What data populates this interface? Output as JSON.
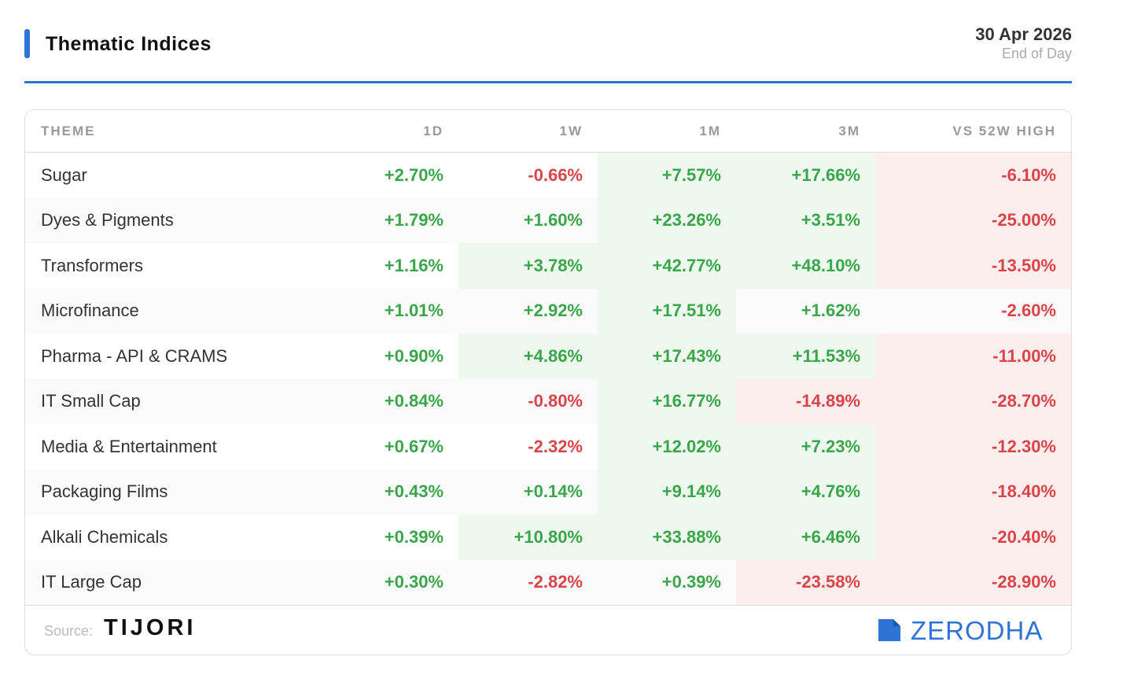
{
  "header": {
    "title": "Thematic Indices",
    "date": "30 Apr 2026",
    "subtitle": "End of Day"
  },
  "table": {
    "columns": [
      "THEME",
      "1D",
      "1W",
      "1M",
      "3M",
      "VS 52W HIGH"
    ],
    "rows": [
      [
        "Sugar",
        "+2.70%",
        "-0.66%",
        "+7.57%",
        "+17.66%",
        "-6.10%"
      ],
      [
        "Dyes & Pigments",
        "+1.79%",
        "+1.60%",
        "+23.26%",
        "+3.51%",
        "-25.00%"
      ],
      [
        "Transformers",
        "+1.16%",
        "+3.78%",
        "+42.77%",
        "+48.10%",
        "-13.50%"
      ],
      [
        "Microfinance",
        "+1.01%",
        "+2.92%",
        "+17.51%",
        "+1.62%",
        "-2.60%"
      ],
      [
        "Pharma - API & CRAMS",
        "+0.90%",
        "+4.86%",
        "+17.43%",
        "+11.53%",
        "-11.00%"
      ],
      [
        "IT Small Cap",
        "+0.84%",
        "-0.80%",
        "+16.77%",
        "-14.89%",
        "-28.70%"
      ],
      [
        "Media & Entertainment",
        "+0.67%",
        "-2.32%",
        "+12.02%",
        "+7.23%",
        "-12.30%"
      ],
      [
        "Packaging Films",
        "+0.43%",
        "+0.14%",
        "+9.14%",
        "+4.76%",
        "-18.40%"
      ],
      [
        "Alkali Chemicals",
        "+0.39%",
        "+10.80%",
        "+33.88%",
        "+6.46%",
        "-20.40%"
      ],
      [
        "IT Large Cap",
        "+0.30%",
        "-2.82%",
        "+0.39%",
        "-23.58%",
        "-28.90%"
      ]
    ]
  },
  "footer": {
    "source_label": "Source:",
    "source": "TIJORI",
    "brand": "ZERODHA"
  }
}
